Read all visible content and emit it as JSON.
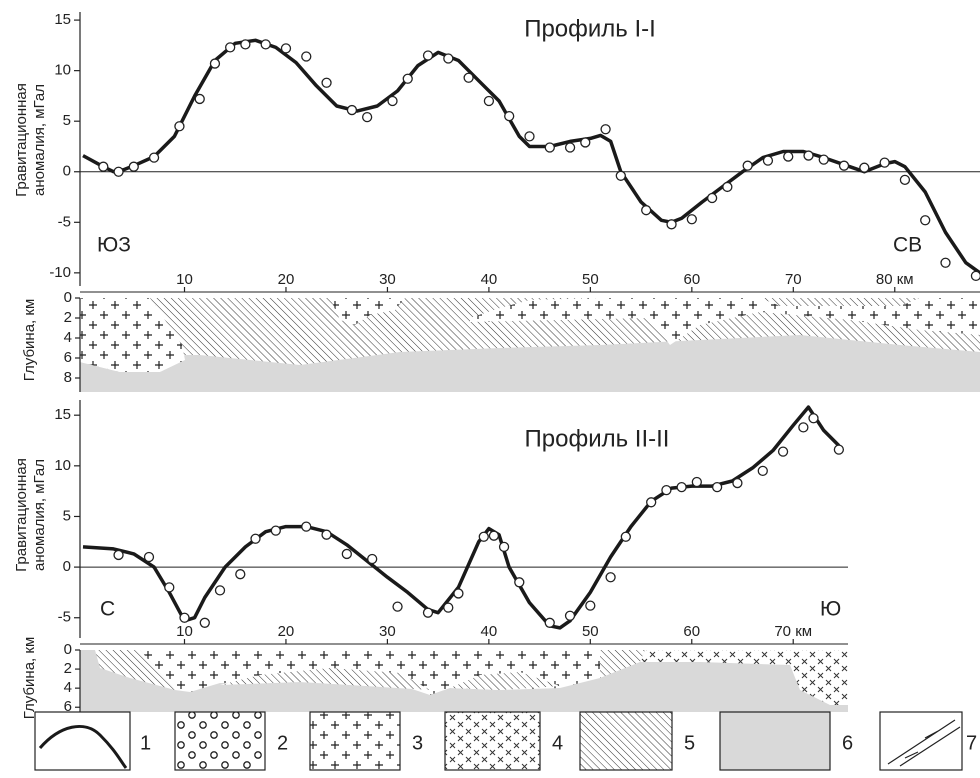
{
  "chart_data": [
    {
      "type": "line",
      "title": "Профиль I-I",
      "ylabel": [
        "Гравитационная",
        "аномалия, мГал"
      ],
      "annotations": [
        "ЮЗ",
        "СВ"
      ],
      "xlim": [
        -0.3,
        88.4
      ],
      "ylim": [
        -11.3,
        15.8
      ],
      "xticks": [
        10,
        20,
        30,
        40,
        50,
        60,
        70,
        {
          "value": 80,
          "label": "80 км"
        }
      ],
      "yticks": [
        -10,
        -5,
        0,
        5,
        10,
        15
      ],
      "curve": {
        "color": "#1a1a1a",
        "x": [
          0,
          2,
          3,
          4,
          5,
          7,
          9,
          11,
          13,
          15,
          17,
          19,
          21,
          23,
          25,
          27,
          29,
          31,
          33,
          35,
          37,
          39,
          41,
          43,
          44,
          46,
          48,
          50,
          51,
          52,
          53,
          55,
          57,
          58,
          59,
          61,
          63,
          65,
          67,
          69,
          71,
          73,
          75,
          77,
          79,
          80,
          81,
          83,
          85,
          87,
          88.4
        ],
        "values": [
          1.6,
          0.5,
          0,
          0.2,
          0.6,
          1.5,
          3.5,
          7.5,
          11,
          12.7,
          13,
          12.3,
          10.8,
          8.5,
          6.5,
          6,
          6.5,
          8,
          10.5,
          11.8,
          11,
          9,
          7,
          3.5,
          2.5,
          2.5,
          3,
          3.3,
          3.6,
          3,
          0,
          -3,
          -4.8,
          -5,
          -4.6,
          -3,
          -1.5,
          0,
          1.4,
          2,
          2,
          1.4,
          0.7,
          0,
          0.8,
          1,
          0.5,
          -2,
          -6,
          -9,
          -10
        ]
      },
      "points": {
        "x": [
          2,
          3.5,
          5,
          7,
          9.5,
          11.5,
          13,
          14.5,
          16,
          18,
          20,
          22,
          24,
          26.5,
          28,
          30.5,
          32,
          34,
          36,
          38,
          40,
          42,
          44,
          46,
          48,
          49.5,
          51.5,
          53,
          55.5,
          58,
          60,
          62,
          63.5,
          65.5,
          67.5,
          69.5,
          71.5,
          73,
          75,
          77,
          79,
          81,
          83,
          85,
          88
        ],
        "values": [
          0.5,
          0,
          0.5,
          1.4,
          4.5,
          7.2,
          10.7,
          12.3,
          12.6,
          12.6,
          12.2,
          11.4,
          8.8,
          6.1,
          5.4,
          7,
          9.2,
          11.5,
          11.2,
          9.3,
          7,
          5.5,
          3.5,
          2.4,
          2.4,
          2.9,
          4.2,
          -0.4,
          -3.8,
          -5.2,
          -4.7,
          -2.6,
          -1.5,
          0.6,
          1.1,
          1.5,
          1.6,
          1.2,
          0.6,
          0.4,
          0.9,
          -0.8,
          -4.8,
          -9,
          -10.3
        ]
      },
      "depth": {
        "label": "Глубина, км",
        "lim": [
          0,
          9.4
        ],
        "ticks": [
          0,
          2,
          4,
          6,
          8
        ]
      }
    },
    {
      "type": "line",
      "title": "Профиль II-II",
      "ylabel": [
        "Гравитационная",
        "аномалия, мГал"
      ],
      "annotations": [
        "С",
        "Ю"
      ],
      "xlim": [
        -0.3,
        75.4
      ],
      "ylim": [
        -7,
        16.5
      ],
      "xticks": [
        10,
        20,
        30,
        40,
        50,
        60,
        {
          "value": 70,
          "label": "70 км"
        }
      ],
      "yticks": [
        -5,
        0,
        5,
        10,
        15
      ],
      "curve": {
        "color": "#1a1a1a",
        "x": [
          0,
          3,
          5,
          7,
          8.5,
          10,
          11,
          12,
          14,
          16,
          18,
          20,
          22,
          24,
          26,
          28,
          30,
          32,
          34,
          35,
          37,
          39,
          40,
          41,
          42,
          44,
          46,
          47,
          48,
          50,
          52,
          54,
          56,
          58,
          60,
          62,
          64,
          66,
          68,
          70,
          71.5,
          73,
          74.5
        ],
        "values": [
          2,
          1.8,
          1.3,
          0,
          -2.5,
          -5.3,
          -5,
          -3,
          0,
          2,
          3.5,
          4,
          4,
          3.5,
          2.2,
          0.6,
          -1,
          -2.5,
          -4.2,
          -4.5,
          -2,
          2.5,
          3.8,
          3.2,
          0,
          -3.5,
          -5.8,
          -6,
          -5.3,
          -2.5,
          1,
          4,
          6.5,
          7.8,
          8,
          8,
          8.5,
          9.8,
          11.5,
          14,
          15.8,
          13.5,
          12
        ]
      },
      "points": {
        "x": [
          3.5,
          6.5,
          8.5,
          10,
          12,
          13.5,
          15.5,
          17,
          19,
          22,
          24,
          26,
          28.5,
          31,
          34,
          36,
          37,
          39.5,
          40.5,
          41.5,
          43,
          46,
          48,
          50,
          52,
          53.5,
          56,
          57.5,
          59,
          60.5,
          62.5,
          64.5,
          67,
          69,
          71,
          72,
          74.5
        ],
        "values": [
          1.2,
          1,
          -2,
          -5,
          -5.5,
          -2.3,
          -0.7,
          2.8,
          3.6,
          4,
          3.2,
          1.3,
          0.8,
          -3.9,
          -4.5,
          -4,
          -2.6,
          3,
          3.1,
          2,
          -1.5,
          -5.5,
          -4.8,
          -3.8,
          -1,
          3,
          6.4,
          7.6,
          7.9,
          8.4,
          7.9,
          8.3,
          9.5,
          11.4,
          13.8,
          14.7,
          11.6
        ]
      },
      "depth": {
        "label": "Глубина, км",
        "lim": [
          0,
          6.5
        ],
        "ticks": [
          0,
          2,
          4,
          6
        ]
      }
    }
  ],
  "legend": [
    "1",
    "2",
    "3",
    "4",
    "5",
    "6",
    "7"
  ]
}
